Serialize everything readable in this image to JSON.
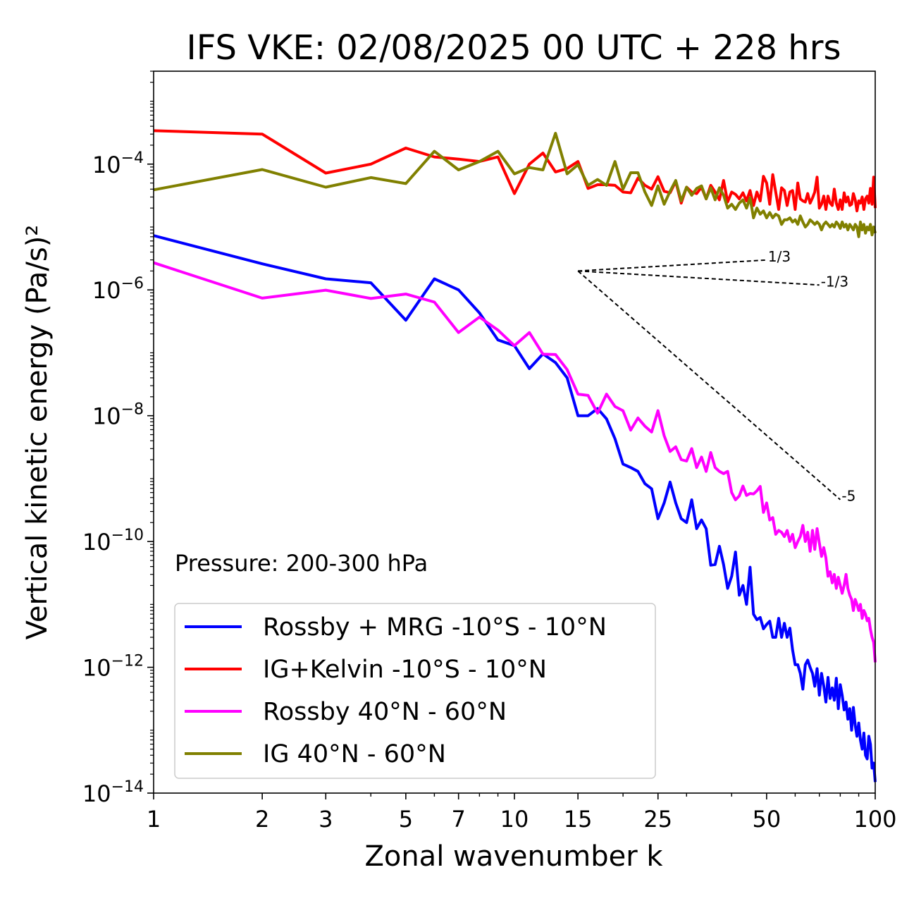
{
  "chart_data": {
    "type": "line",
    "title": "IFS VKE: 02/08/2025 00 UTC + 228 hrs",
    "xlabel": "Zonal wavenumber k",
    "ylabel": "Vertical kinetic energy (Pa/s)²",
    "xscale": "log",
    "yscale": "log",
    "xlim": [
      1,
      100
    ],
    "ylim": [
      1e-14,
      0.003
    ],
    "x_ticks": [
      1,
      2,
      3,
      5,
      7,
      10,
      15,
      25,
      50,
      100
    ],
    "x_tick_labels": [
      "1",
      "2",
      "3",
      "5",
      "7",
      "10",
      "15",
      "25",
      "50",
      "100"
    ],
    "y_ticks": [
      {
        "value": 0.0001,
        "base": "10",
        "exp": "−4"
      },
      {
        "value": 1e-06,
        "base": "10",
        "exp": "−6"
      },
      {
        "value": 1e-08,
        "base": "10",
        "exp": "−8"
      },
      {
        "value": 1e-10,
        "base": "10",
        "exp": "−10"
      },
      {
        "value": 1e-12,
        "base": "10",
        "exp": "−12"
      },
      {
        "value": 1e-14,
        "base": "10",
        "exp": "−14"
      }
    ],
    "annotation": "Pressure: 200-300 hPa",
    "legend_position": "lower-left",
    "series": [
      {
        "name": "Rossby + MRG -10°S - 10°N",
        "color": "#0000ff",
        "x": [
          1,
          2,
          3,
          4,
          5,
          6,
          7,
          8,
          9,
          10,
          11,
          12,
          13,
          14,
          15,
          16,
          17,
          18,
          19,
          20,
          21,
          22,
          23,
          24,
          25,
          26,
          27,
          28,
          29,
          30,
          31,
          32,
          33,
          34,
          35,
          36,
          37,
          38,
          39,
          40,
          41,
          42,
          43,
          44,
          45,
          46,
          47,
          48,
          49,
          50,
          51,
          52,
          53,
          54,
          55,
          56,
          57,
          58,
          59,
          60,
          61,
          62,
          63,
          64,
          65,
          66,
          67,
          68,
          69,
          70,
          71,
          72,
          73,
          74,
          75,
          76,
          77,
          78,
          79,
          80,
          81,
          82,
          83,
          84,
          85,
          86,
          87,
          88,
          89,
          90,
          91,
          92,
          93,
          94,
          95,
          96,
          97,
          98,
          99,
          100
        ],
        "y": [
          7.3e-06,
          2.6e-06,
          1.5e-06,
          1.3e-06,
          3.3e-07,
          1.5e-06,
          1e-06,
          4.3e-07,
          1.6e-07,
          1.3e-07,
          5.6e-08,
          9.6e-08,
          7e-08,
          4e-08,
          1e-08,
          1e-08,
          1.3e-08,
          8.9e-09,
          4.3e-09,
          1.7e-09,
          1.5e-09,
          1.3e-09,
          8.3e-10,
          6.9e-10,
          2.3e-10,
          4.1e-10,
          8.8e-10,
          4.1e-10,
          2.3e-10,
          2e-10,
          4.6e-10,
          1.6e-10,
          2.2e-10,
          1.6e-10,
          4.2e-11,
          4.3e-11,
          8.4e-11,
          4.3e-11,
          1.8e-11,
          2.8e-11,
          6.8e-11,
          1.4e-11,
          2e-11,
          1e-11,
          3.9e-11,
          7e-12,
          5.7e-12,
          6.2e-12,
          4.1e-12,
          4.8e-12,
          5.4e-12,
          3e-12,
          3e-12,
          6e-12,
          3e-12,
          5e-12,
          3e-12,
          4.2e-12,
          1.9e-12,
          1.1e-12,
          1.1e-12,
          8e-13,
          4.5e-13,
          1.1e-12,
          1.3e-12,
          1e-12,
          8e-13,
          5e-13,
          9.5e-13,
          3.6e-13,
          8e-13,
          5e-13,
          2.8e-13,
          6.9e-13,
          3.2e-13,
          4.7e-13,
          3e-13,
          6.7e-13,
          2.2e-13,
          5.3e-13,
          3.6e-13,
          2.1e-13,
          2.8e-13,
          1.5e-13,
          2.2e-13,
          1e-13,
          2.3e-13,
          1.2e-13,
          8e-14,
          1.3e-13,
          7e-14,
          5e-14,
          9e-14,
          4e-14,
          3.5e-14,
          8e-14,
          6e-14,
          2.5e-14,
          3e-14,
          1.5e-14
        ]
      },
      {
        "name": "IG+Kelvin -10°S - 10°N",
        "color": "#ff0000",
        "x": [
          1,
          2,
          3,
          4,
          5,
          6,
          7,
          8,
          9,
          10,
          11,
          12,
          13,
          14,
          15,
          16,
          17,
          18,
          19,
          20,
          21,
          22,
          23,
          24,
          25,
          26,
          27,
          28,
          29,
          30,
          31,
          32,
          33,
          34,
          35,
          36,
          37,
          38,
          39,
          40,
          41,
          42,
          43,
          44,
          45,
          46,
          47,
          48,
          49,
          50,
          51,
          52,
          53,
          54,
          55,
          56,
          57,
          58,
          59,
          60,
          61,
          62,
          63,
          64,
          65,
          66,
          67,
          68,
          69,
          70,
          71,
          72,
          73,
          74,
          75,
          76,
          77,
          78,
          79,
          80,
          81,
          82,
          83,
          84,
          85,
          86,
          87,
          88,
          89,
          90,
          91,
          92,
          93,
          94,
          95,
          96,
          97,
          98,
          99,
          100
        ],
        "y": [
          0.00034,
          0.0003,
          7.2e-05,
          0.0001,
          0.00018,
          0.00013,
          0.00012,
          0.00011,
          0.00013,
          3.4e-05,
          0.0001,
          0.00015,
          7.5e-05,
          8.5e-05,
          0.00011,
          4.1e-05,
          4.7e-05,
          4.7e-05,
          4.6e-05,
          3.6e-05,
          3.5e-05,
          6e-05,
          4.6e-05,
          4e-05,
          6.3e-05,
          3.7e-05,
          3.5e-05,
          5.3e-05,
          2.4e-05,
          4.3e-05,
          3.6e-05,
          3.4e-05,
          4.3e-05,
          2.8e-05,
          4.6e-05,
          3.6e-05,
          2.7e-05,
          5.5e-05,
          2.5e-05,
          3.6e-05,
          3.3e-05,
          2.8e-05,
          3.5e-05,
          2.6e-05,
          3.8e-05,
          2.2e-05,
          3.6e-05,
          2.6e-05,
          6.4e-05,
          5e-05,
          2.3e-05,
          6.8e-05,
          3.6e-05,
          1.9e-05,
          4.2e-05,
          3.8e-05,
          2.2e-05,
          3.6e-05,
          3.8e-05,
          1.9e-05,
          5e-05,
          2.8e-05,
          2.6e-05,
          2.5e-05,
          3.4e-05,
          2.4e-05,
          2.9e-05,
          3.6e-05,
          6.2e-05,
          2e-05,
          2.3e-05,
          3.1e-05,
          1.9e-05,
          3.1e-05,
          2.4e-05,
          2.2e-05,
          4e-05,
          2.4e-05,
          1.9e-05,
          2.7e-05,
          1.9e-05,
          3.5e-05,
          2.5e-05,
          3e-05,
          2.2e-05,
          2.3e-05,
          3.4e-05,
          2.7e-05,
          1.8e-05,
          2.6e-05,
          2.4e-05,
          3e-05,
          1.9e-05,
          2.8e-05,
          3.1e-05,
          2.4e-05,
          4.1e-05,
          2.3e-05,
          6.2e-05,
          2e-05
        ]
      },
      {
        "name": "Rossby 40°N - 60°N",
        "color": "#ff00ff",
        "x": [
          1,
          2,
          3,
          4,
          5,
          6,
          7,
          8,
          9,
          10,
          11,
          12,
          13,
          14,
          15,
          16,
          17,
          18,
          19,
          20,
          21,
          22,
          23,
          24,
          25,
          26,
          27,
          28,
          29,
          30,
          31,
          32,
          33,
          34,
          35,
          36,
          37,
          38,
          39,
          40,
          41,
          42,
          43,
          44,
          45,
          46,
          47,
          48,
          49,
          50,
          51,
          52,
          53,
          54,
          55,
          56,
          57,
          58,
          59,
          60,
          61,
          62,
          63,
          64,
          65,
          66,
          67,
          68,
          69,
          70,
          71,
          72,
          73,
          74,
          75,
          76,
          77,
          78,
          79,
          80,
          81,
          82,
          83,
          84,
          85,
          86,
          87,
          88,
          89,
          90,
          91,
          92,
          93,
          94,
          95,
          96,
          97,
          98,
          99,
          100
        ],
        "y": [
          2.7e-06,
          7.4e-07,
          9.9e-07,
          7.3e-07,
          8.6e-07,
          6.4e-07,
          2.1e-07,
          3.7e-07,
          2.3e-07,
          1.3e-07,
          2.1e-07,
          9.5e-08,
          9.4e-08,
          5.4e-08,
          2.2e-08,
          2.1e-08,
          1.1e-08,
          2.2e-08,
          1.4e-08,
          1.2e-08,
          5.9e-09,
          9.2e-09,
          6.8e-09,
          5.5e-09,
          1.2e-08,
          4.8e-09,
          2.7e-09,
          3.2e-09,
          2e-09,
          1.9e-09,
          3e-09,
          1.5e-09,
          2.2e-09,
          1.3e-09,
          2.6e-09,
          1.5e-09,
          1.3e-09,
          1.2e-09,
          1.3e-09,
          6e-10,
          4.6e-10,
          5.3e-10,
          7.6e-10,
          5.4e-10,
          5.8e-10,
          5.7e-10,
          6.4e-10,
          7.5e-10,
          2.9e-10,
          4.1e-10,
          2.2e-10,
          2.4e-10,
          1.3e-10,
          1.5e-10,
          1.4e-10,
          1.2e-10,
          1.5e-10,
          1e-10,
          1.3e-10,
          8e-11,
          1e-10,
          1.2e-10,
          1.8e-10,
          1e-10,
          1.4e-10,
          7e-11,
          1.5e-10,
          7.5e-11,
          1.6e-10,
          9.5e-11,
          5.8e-11,
          8e-11,
          5.5e-11,
          2.8e-11,
          3.3e-11,
          2.2e-11,
          3e-11,
          1.8e-11,
          2.7e-11,
          2e-11,
          1.5e-11,
          2e-11,
          3e-11,
          1.8e-11,
          1.4e-11,
          1.2e-11,
          8e-12,
          1.2e-11,
          1e-11,
          8e-12,
          1e-11,
          6e-12,
          8e-12,
          7e-12,
          5.5e-12,
          6e-12,
          4e-12,
          3e-12,
          2.5e-12,
          1.2e-12
        ]
      },
      {
        "name": "IG 40°N - 60°N",
        "color": "#808000",
        "x": [
          1,
          2,
          3,
          4,
          5,
          6,
          7,
          8,
          9,
          10,
          11,
          12,
          13,
          14,
          15,
          16,
          17,
          18,
          19,
          20,
          21,
          22,
          23,
          24,
          25,
          26,
          27,
          28,
          29,
          30,
          31,
          32,
          33,
          34,
          35,
          36,
          37,
          38,
          39,
          40,
          41,
          42,
          43,
          44,
          45,
          46,
          47,
          48,
          49,
          50,
          51,
          52,
          53,
          54,
          55,
          56,
          57,
          58,
          59,
          60,
          61,
          62,
          63,
          64,
          65,
          66,
          67,
          68,
          69,
          70,
          71,
          72,
          73,
          74,
          75,
          76,
          77,
          78,
          79,
          80,
          81,
          82,
          83,
          84,
          85,
          86,
          87,
          88,
          89,
          90,
          91,
          92,
          93,
          94,
          95,
          96,
          97,
          98,
          99,
          100
        ],
        "y": [
          3.9e-05,
          8.2e-05,
          4.3e-05,
          6.1e-05,
          4.9e-05,
          0.00016,
          8.1e-05,
          0.00011,
          0.00016,
          7e-05,
          8.8e-05,
          8.1e-05,
          0.00031,
          7e-05,
          9.8e-05,
          4.6e-05,
          5.7e-05,
          4.6e-05,
          0.00011,
          4e-05,
          7.3e-05,
          7.3e-05,
          3.6e-05,
          2.2e-05,
          4.5e-05,
          2.3e-05,
          3.7e-05,
          5.5e-05,
          2.6e-05,
          4.3e-05,
          3.2e-05,
          4.1e-05,
          4.5e-05,
          2.8e-05,
          4.2e-05,
          2.7e-05,
          4.2e-05,
          3.2e-05,
          2e-05,
          2.3e-05,
          1.9e-05,
          2.4e-05,
          2.7e-05,
          2e-05,
          2.9e-05,
          1.4e-05,
          2e-05,
          1.6e-05,
          1.8e-05,
          1.4e-05,
          1.7e-05,
          1.4e-05,
          1.6e-05,
          1.5e-05,
          1.1e-05,
          1.3e-05,
          1.3e-05,
          1.4e-05,
          1.2e-05,
          1.3e-05,
          1.1e-05,
          1.5e-05,
          1.2e-05,
          1e-05,
          1.1e-05,
          1.3e-05,
          1.2e-05,
          1.1e-05,
          1.2e-05,
          1.1e-05,
          9e-06,
          1.1e-05,
          1.2e-05,
          1.1e-05,
          1e-05,
          1.1e-05,
          1e-05,
          1.2e-05,
          1.1e-05,
          9.5e-06,
          1.2e-05,
          1e-05,
          1.1e-05,
          9e-06,
          1.1e-05,
          1e-05,
          9e-06,
          1.1e-05,
          1e-05,
          7e-06,
          1.2e-05,
          9e-06,
          1.1e-05,
          8e-06,
          1e-05,
          9e-06,
          1.1e-05,
          7.5e-06,
          1e-05,
          8e-06
        ]
      }
    ],
    "reference_slopes": [
      {
        "label": "1/3",
        "slope": 0.3333,
        "x0": 15,
        "y0": 2e-06,
        "x1": 50
      },
      {
        "label": "-1/3",
        "slope": -0.3333,
        "x0": 15,
        "y0": 2e-06,
        "x1": 70
      },
      {
        "label": "-5",
        "slope": -5,
        "x0": 15,
        "y0": 2e-06,
        "x1": 80
      }
    ]
  }
}
